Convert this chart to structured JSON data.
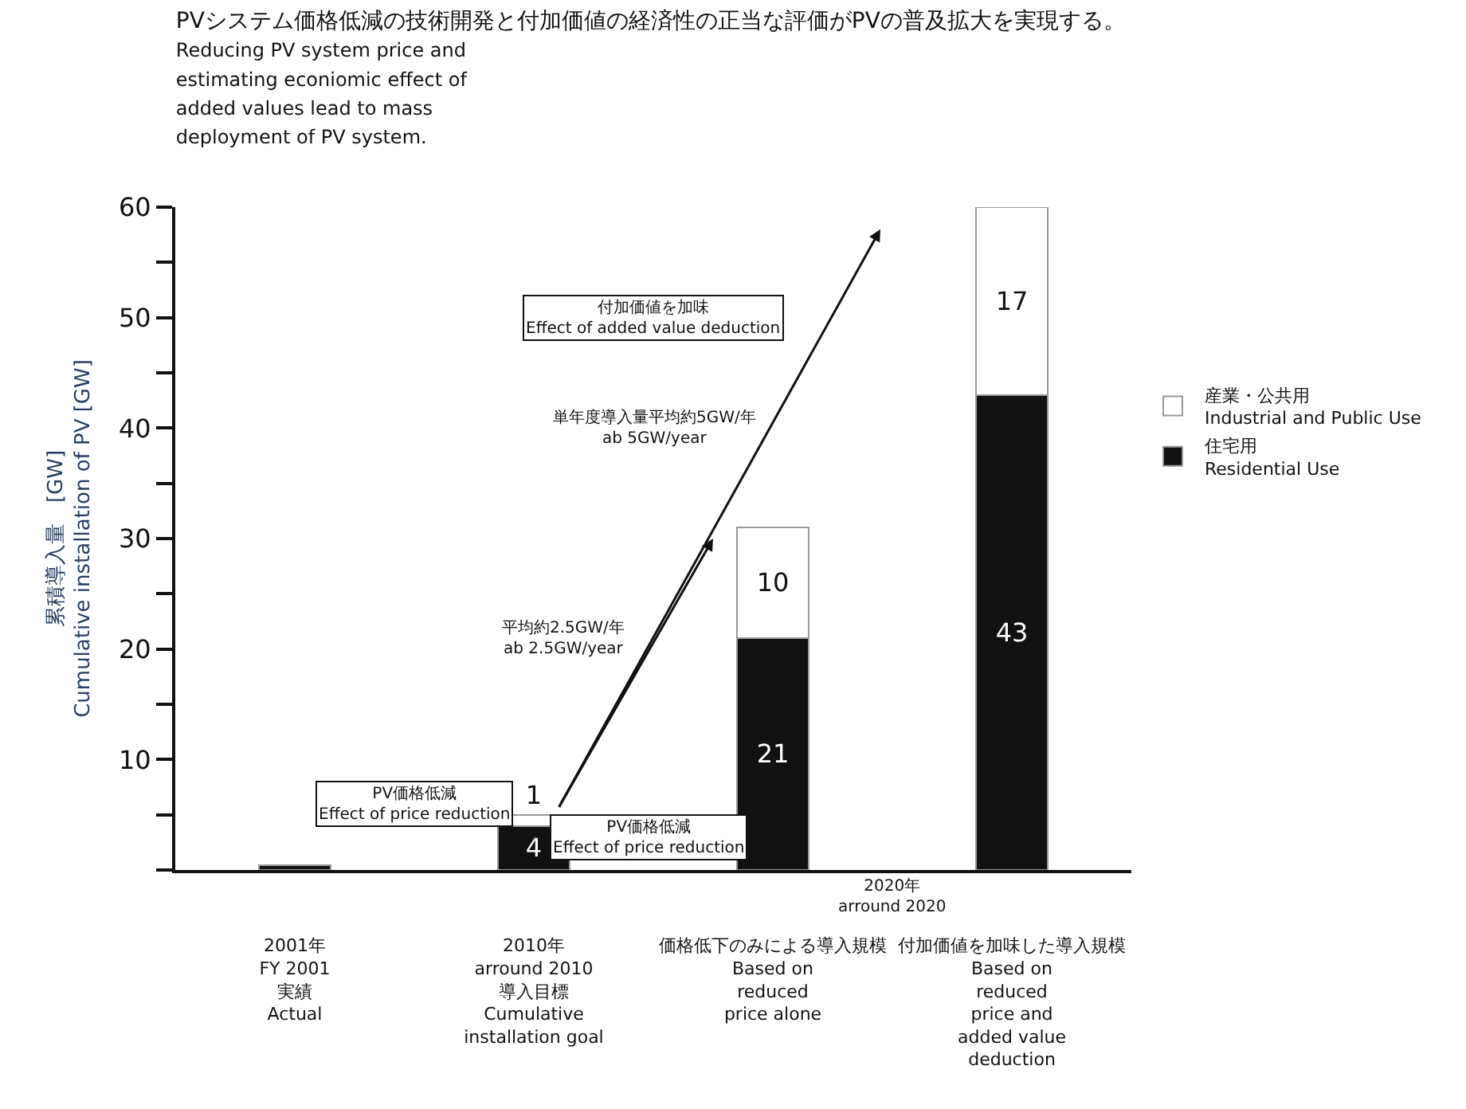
{
  "chart_data": {
    "type": "bar",
    "stacked": true,
    "title": "PVシステム価格低減の技術開発と付加価値の経済性の正当な評価がPVの普及拡大を実現する。",
    "subtitle": "Reducing PV system price and\nestimating econiomic effect of\nadded values lead to mass\ndeployment of PV system.",
    "ylabel": "累積導入量　[GW]\nCumulative installation of PV [GW]",
    "categories": [
      "2001年\nFY 2001\n実績\nActual",
      "2010年\narround 2010\n導入目標\nCumulative\ninstallation goal",
      "価格低下のみによる導入規模\nBased on\nreduced\nprice alone",
      "付加価値を加味した導入規模\nBased on\nreduced\nprice and\nadded value\ndeduction"
    ],
    "series": [
      {
        "name": "住宅用\nResidential Use",
        "color": "#111111",
        "values": [
          0.4,
          4,
          21,
          43
        ],
        "value_labels": [
          null,
          "4",
          "21",
          "43"
        ]
      },
      {
        "name": "産業・公共用\nIndustrial and Public Use",
        "color": "#ffffff",
        "values": [
          null,
          1,
          10,
          17
        ],
        "value_labels": [
          null,
          "1",
          "10",
          "17"
        ]
      }
    ],
    "ylim": [
      0,
      60
    ],
    "yticks": [
      {
        "value": 0,
        "label": null
      },
      {
        "value": 5,
        "label": null
      },
      10,
      {
        "value": 15,
        "label": null
      },
      20,
      {
        "value": 25,
        "label": null
      },
      30,
      {
        "value": 35,
        "label": null
      },
      40,
      {
        "value": 45,
        "label": null
      },
      50,
      {
        "value": 55,
        "label": null
      },
      60
    ],
    "annotations": [
      "PV価格低減\nEffect of price reduction",
      "PV価格低減\nEffect of price reduction",
      "付加価値を加味\nEffect of added value deduction",
      "平均約2.5GW/年\nab 2.5GW/year",
      "単年度導入量平均約5GW/年\nab 5GW/year",
      "2020年\narround 2020"
    ],
    "legend": "right"
  }
}
